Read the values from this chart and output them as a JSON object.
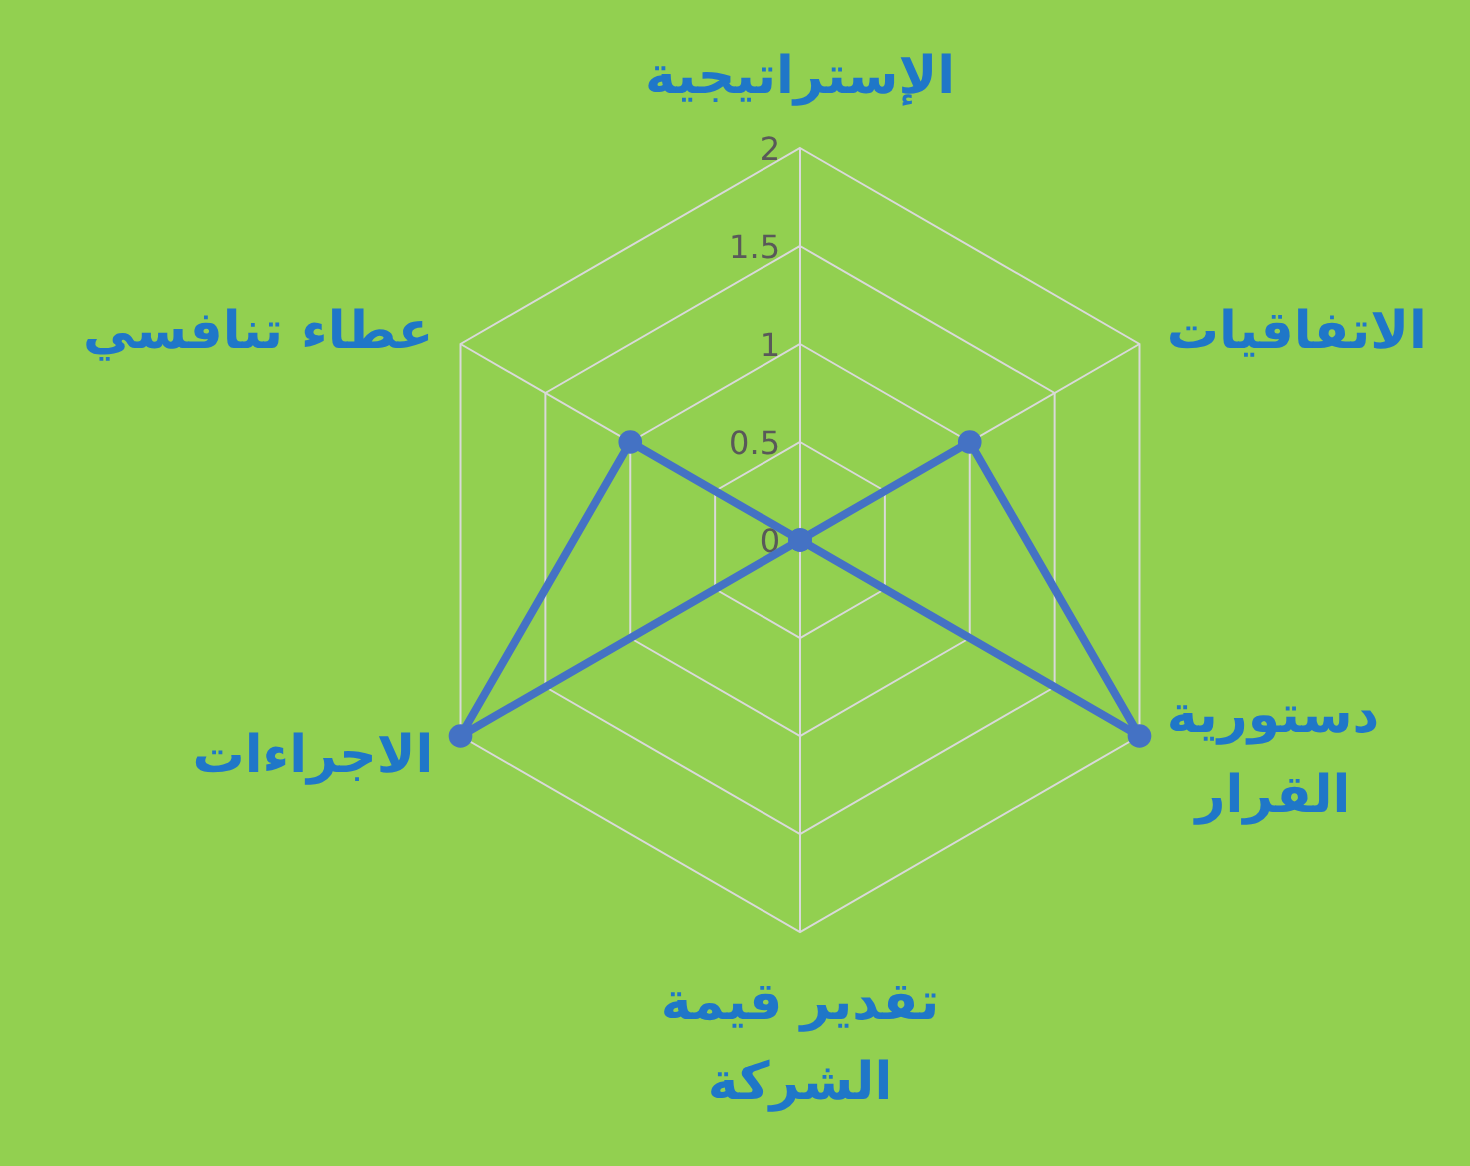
{
  "chart_data": {
    "type": "radar",
    "categories": [
      "الإستراتيجية",
      "الاتفاقيات",
      "دستورية\nالقرار",
      "تقدير قيمة\nالشركة",
      "الاجراءات",
      "عطاء تنافسي"
    ],
    "series": [
      {
        "color": "#4472c4",
        "values": [
          0,
          1,
          2,
          0,
          2,
          1
        ]
      }
    ],
    "ylim": [
      0,
      2
    ],
    "yticks": [
      0,
      0.5,
      1,
      1.5,
      2
    ],
    "grid": true,
    "marker": "circle",
    "line_style": "solid"
  }
}
